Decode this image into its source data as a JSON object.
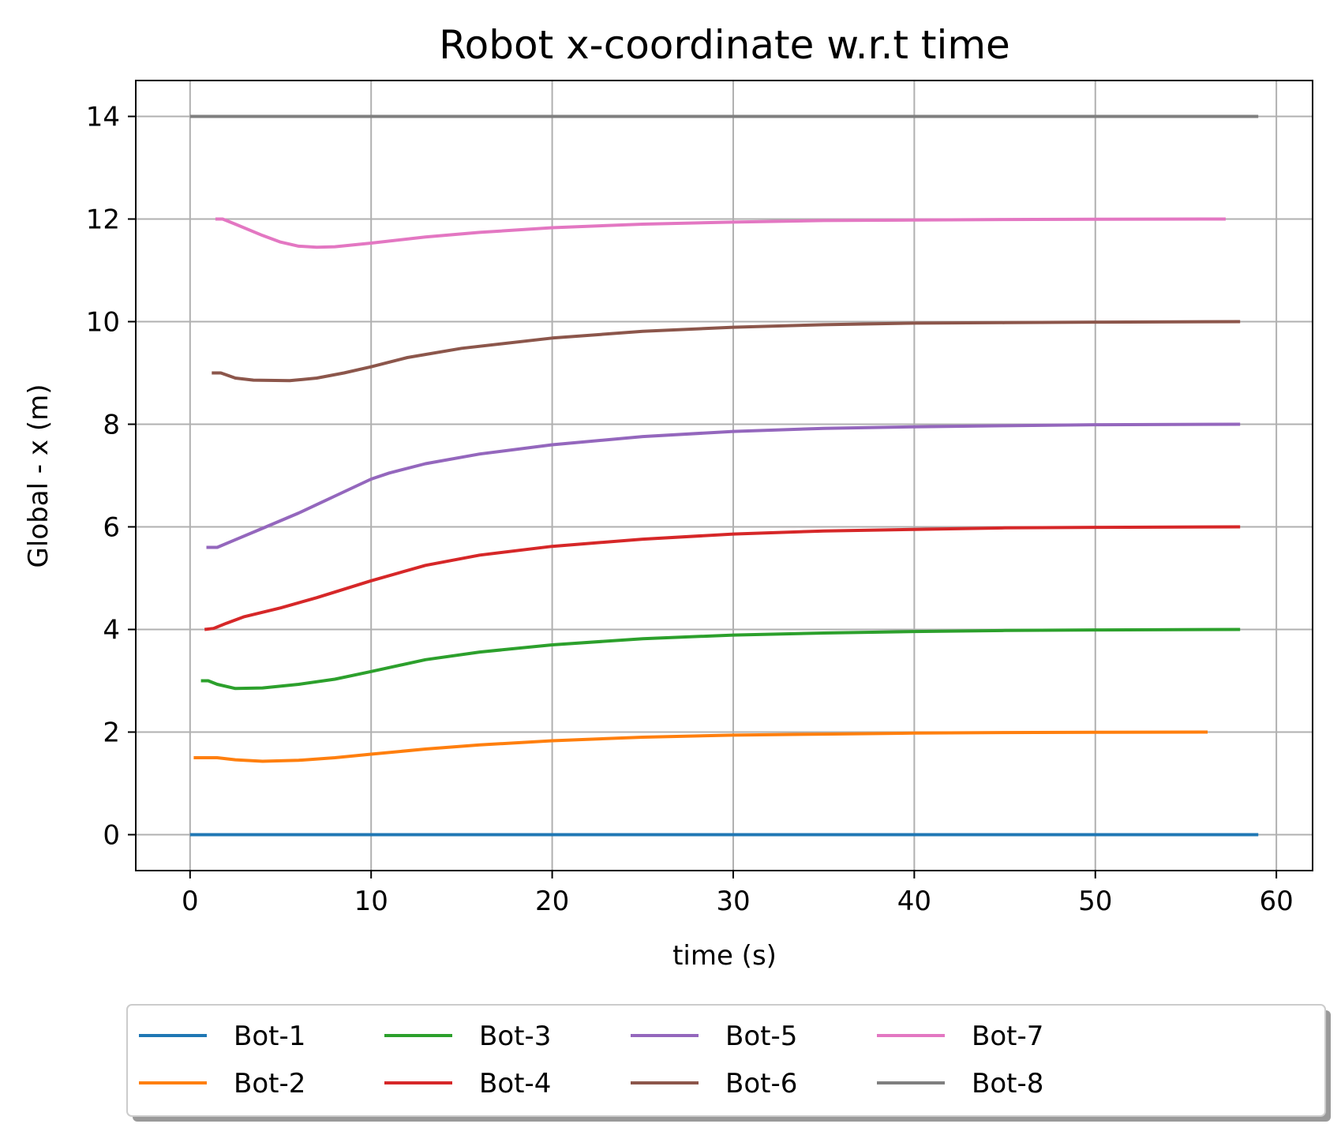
{
  "chart_data": {
    "type": "line",
    "title": "Robot x-coordinate w.r.t time",
    "xlabel": "time (s)",
    "ylabel": "Global - x (m)",
    "xlim": [
      -3,
      62
    ],
    "ylim": [
      -0.7,
      14.7
    ],
    "xticks": [
      0,
      10,
      20,
      30,
      40,
      50,
      60
    ],
    "yticks": [
      0,
      2,
      4,
      6,
      8,
      10,
      12,
      14
    ],
    "grid": true,
    "legend_position": "bottom, below axes",
    "legend_columns": 5,
    "series": [
      {
        "name": "Bot-1",
        "color": "#1f77b4",
        "x": [
          0,
          59
        ],
        "y": [
          0,
          0
        ]
      },
      {
        "name": "Bot-2",
        "color": "#ff7f0e",
        "x": [
          0.2,
          1.5,
          2.5,
          4,
          6,
          8,
          10,
          13,
          16,
          20,
          25,
          30,
          35,
          40,
          45,
          50,
          56.2
        ],
        "y": [
          1.5,
          1.5,
          1.46,
          1.43,
          1.45,
          1.5,
          1.57,
          1.67,
          1.75,
          1.83,
          1.9,
          1.94,
          1.96,
          1.98,
          1.99,
          1.995,
          2.0
        ]
      },
      {
        "name": "Bot-3",
        "color": "#2ca02c",
        "x": [
          0.6,
          1.0,
          1.5,
          2.5,
          4,
          6,
          8,
          10,
          13,
          16,
          20,
          25,
          30,
          35,
          40,
          45,
          50,
          58
        ],
        "y": [
          3.0,
          3.0,
          2.93,
          2.85,
          2.86,
          2.93,
          3.03,
          3.18,
          3.41,
          3.56,
          3.7,
          3.82,
          3.89,
          3.93,
          3.96,
          3.98,
          3.99,
          4.0
        ]
      },
      {
        "name": "Bot-4",
        "color": "#d62728",
        "x": [
          0.8,
          1.3,
          2.0,
          3.0,
          5.0,
          7.0,
          10.0,
          13,
          16,
          20,
          25,
          30,
          35,
          40,
          45,
          50,
          58
        ],
        "y": [
          4.0,
          4.02,
          4.12,
          4.25,
          4.42,
          4.62,
          4.95,
          5.25,
          5.45,
          5.62,
          5.76,
          5.86,
          5.92,
          5.95,
          5.98,
          5.99,
          6.0
        ]
      },
      {
        "name": "Bot-5",
        "color": "#9467bd",
        "x": [
          0.9,
          1.5,
          2.5,
          4,
          6,
          8,
          10,
          11,
          13,
          16,
          20,
          25,
          30,
          35,
          40,
          45,
          50,
          58
        ],
        "y": [
          5.6,
          5.6,
          5.75,
          5.97,
          6.27,
          6.6,
          6.93,
          7.05,
          7.23,
          7.42,
          7.6,
          7.76,
          7.86,
          7.92,
          7.95,
          7.97,
          7.99,
          8.0
        ]
      },
      {
        "name": "Bot-6",
        "color": "#8c564b",
        "x": [
          1.2,
          1.7,
          2.5,
          3.5,
          5.5,
          7,
          8.5,
          10,
          12,
          15,
          20,
          25,
          30,
          35,
          40,
          45,
          50,
          58
        ],
        "y": [
          9.0,
          9.0,
          8.9,
          8.86,
          8.85,
          8.9,
          9.0,
          9.12,
          9.3,
          9.48,
          9.68,
          9.81,
          9.89,
          9.94,
          9.97,
          9.98,
          9.99,
          10.0
        ]
      },
      {
        "name": "Bot-7",
        "color": "#e377c2",
        "x": [
          1.4,
          1.8,
          2.5,
          4,
          5,
          6,
          7,
          8,
          10,
          13,
          16,
          20,
          25,
          30,
          35,
          40,
          45,
          50,
          57.2
        ],
        "y": [
          12.0,
          12.0,
          11.9,
          11.68,
          11.55,
          11.47,
          11.45,
          11.46,
          11.53,
          11.65,
          11.74,
          11.83,
          11.9,
          11.94,
          11.97,
          11.98,
          11.99,
          11.995,
          12.0
        ]
      },
      {
        "name": "Bot-8",
        "color": "#7f7f7f",
        "x": [
          0,
          59
        ],
        "y": [
          14,
          14
        ]
      }
    ]
  }
}
